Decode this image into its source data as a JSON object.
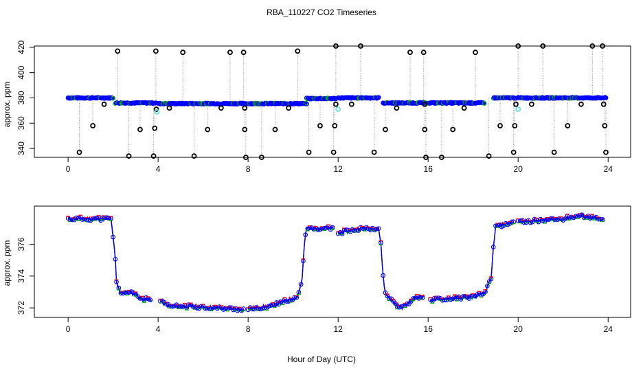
{
  "title": "RBA_110227  CO2 Timeseries",
  "xlabel": "Hour of Day (UTC)",
  "colors": {
    "blue": "#0000ff",
    "green": "#00b000",
    "red": "#ff0000",
    "cyan": "#66e0e0",
    "black": "#000000",
    "gray": "#999999"
  },
  "chart_data": [
    {
      "type": "scatter",
      "name": "top-panel",
      "ylabel": "approx. ppm",
      "xlim": [
        -1.5,
        25
      ],
      "ylim": [
        333,
        421
      ],
      "xticks": [
        "0",
        "4",
        "8",
        "12",
        "16",
        "20",
        "24"
      ],
      "yticks": [
        "340",
        "360",
        "380",
        "400",
        "420"
      ],
      "main_levels": [
        {
          "x0": 0.0,
          "x1": 2.0,
          "y": 380.0
        },
        {
          "x0": 2.1,
          "x1": 3.9,
          "y": 376.0
        },
        {
          "x0": 4.0,
          "x1": 7.9,
          "y": 375.5
        },
        {
          "x0": 8.0,
          "x1": 10.6,
          "y": 375.5
        },
        {
          "x0": 10.6,
          "x1": 11.9,
          "y": 379.5
        },
        {
          "x0": 12.0,
          "x1": 13.8,
          "y": 380.0
        },
        {
          "x0": 14.0,
          "x1": 15.9,
          "y": 376.0
        },
        {
          "x0": 16.0,
          "x1": 18.5,
          "y": 376.0
        },
        {
          "x0": 18.9,
          "x1": 19.9,
          "y": 380.0
        },
        {
          "x0": 20.0,
          "x1": 23.9,
          "y": 380.0
        }
      ],
      "spikes": [
        {
          "x": 0.5,
          "y": 337
        },
        {
          "x": 1.1,
          "y": 358
        },
        {
          "x": 1.6,
          "y": 375
        },
        {
          "x": 2.2,
          "y": 417
        },
        {
          "x": 2.7,
          "y": 334
        },
        {
          "x": 3.2,
          "y": 355
        },
        {
          "x": 3.8,
          "y": 334
        },
        {
          "x": 3.85,
          "y": 356
        },
        {
          "x": 3.9,
          "y": 417
        },
        {
          "x": 3.92,
          "y": 371
        },
        {
          "x": 4.5,
          "y": 372
        },
        {
          "x": 5.1,
          "y": 416
        },
        {
          "x": 5.6,
          "y": 334
        },
        {
          "x": 6.2,
          "y": 355
        },
        {
          "x": 6.8,
          "y": 372
        },
        {
          "x": 7.2,
          "y": 416
        },
        {
          "x": 7.8,
          "y": 416
        },
        {
          "x": 7.85,
          "y": 355
        },
        {
          "x": 7.9,
          "y": 333
        },
        {
          "x": 7.85,
          "y": 372
        },
        {
          "x": 8.6,
          "y": 333
        },
        {
          "x": 9.2,
          "y": 355
        },
        {
          "x": 9.8,
          "y": 372
        },
        {
          "x": 10.2,
          "y": 417
        },
        {
          "x": 10.7,
          "y": 337
        },
        {
          "x": 11.2,
          "y": 358
        },
        {
          "x": 11.8,
          "y": 337
        },
        {
          "x": 11.85,
          "y": 358
        },
        {
          "x": 11.9,
          "y": 375
        },
        {
          "x": 11.9,
          "y": 421
        },
        {
          "x": 12.6,
          "y": 375
        },
        {
          "x": 13.0,
          "y": 421
        },
        {
          "x": 13.6,
          "y": 337
        },
        {
          "x": 14.1,
          "y": 355
        },
        {
          "x": 14.6,
          "y": 372
        },
        {
          "x": 15.2,
          "y": 416
        },
        {
          "x": 15.8,
          "y": 416
        },
        {
          "x": 15.85,
          "y": 355
        },
        {
          "x": 15.9,
          "y": 333
        },
        {
          "x": 15.85,
          "y": 375
        },
        {
          "x": 16.6,
          "y": 333
        },
        {
          "x": 17.1,
          "y": 355
        },
        {
          "x": 17.6,
          "y": 372
        },
        {
          "x": 18.1,
          "y": 416
        },
        {
          "x": 18.7,
          "y": 334
        },
        {
          "x": 19.2,
          "y": 358
        },
        {
          "x": 19.8,
          "y": 337
        },
        {
          "x": 19.85,
          "y": 358
        },
        {
          "x": 19.9,
          "y": 375
        },
        {
          "x": 20.0,
          "y": 421
        },
        {
          "x": 20.6,
          "y": 375
        },
        {
          "x": 21.1,
          "y": 421
        },
        {
          "x": 21.6,
          "y": 337
        },
        {
          "x": 22.2,
          "y": 358
        },
        {
          "x": 22.8,
          "y": 375
        },
        {
          "x": 23.3,
          "y": 421
        },
        {
          "x": 23.75,
          "y": 421
        },
        {
          "x": 23.8,
          "y": 375
        },
        {
          "x": 23.85,
          "y": 358
        },
        {
          "x": 23.9,
          "y": 337
        }
      ],
      "cyan_points": [
        {
          "x": 3.95,
          "y": 369
        },
        {
          "x": 12.0,
          "y": 371
        },
        {
          "x": 20.0,
          "y": 371
        }
      ]
    },
    {
      "type": "line",
      "name": "bottom-panel",
      "ylabel": "approx. ppm",
      "xlim": [
        -1.5,
        25
      ],
      "ylim": [
        371.4,
        378.4
      ],
      "xticks": [
        "0",
        "4",
        "8",
        "12",
        "16",
        "20",
        "24"
      ],
      "yticks": [
        "372",
        "374",
        "376"
      ],
      "series": [
        {
          "name": "CO2",
          "segments": [
            [
              [
                0.0,
                377.6
              ],
              [
                1.0,
                377.6
              ],
              [
                1.9,
                377.6
              ],
              [
                2.0,
                376.5
              ],
              [
                2.1,
                375.0
              ],
              [
                2.15,
                373.6
              ],
              [
                2.3,
                373.0
              ],
              [
                3.0,
                372.9
              ],
              [
                3.2,
                372.6
              ],
              [
                3.7,
                372.5
              ]
            ],
            [
              [
                4.1,
                372.4
              ],
              [
                4.5,
                372.1
              ],
              [
                5.5,
                372.1
              ],
              [
                6.5,
                372.0
              ],
              [
                7.8,
                371.9
              ]
            ],
            [
              [
                8.0,
                371.95
              ],
              [
                9.0,
                372.1
              ],
              [
                9.8,
                372.5
              ],
              [
                10.2,
                372.7
              ],
              [
                10.4,
                373.8
              ],
              [
                10.5,
                376.0
              ],
              [
                10.6,
                377.0
              ],
              [
                11.8,
                377.0
              ]
            ],
            [
              [
                12.0,
                376.7
              ],
              [
                13.0,
                377.0
              ],
              [
                13.8,
                377.0
              ],
              [
                13.9,
                376.0
              ],
              [
                14.0,
                374.0
              ],
              [
                14.1,
                372.9
              ],
              [
                14.5,
                372.3
              ],
              [
                14.8,
                372.0
              ],
              [
                15.2,
                372.4
              ],
              [
                15.5,
                372.7
              ],
              [
                15.8,
                372.7
              ]
            ],
            [
              [
                16.1,
                372.5
              ],
              [
                17.0,
                372.6
              ],
              [
                18.0,
                372.7
              ],
              [
                18.5,
                372.9
              ],
              [
                18.8,
                373.8
              ],
              [
                18.9,
                375.8
              ],
              [
                19.0,
                377.1
              ],
              [
                19.8,
                377.4
              ]
            ],
            [
              [
                20.0,
                377.4
              ],
              [
                21.0,
                377.5
              ],
              [
                22.0,
                377.6
              ],
              [
                22.7,
                377.8
              ],
              [
                23.2,
                377.7
              ],
              [
                23.8,
                377.5
              ]
            ]
          ]
        }
      ]
    }
  ]
}
